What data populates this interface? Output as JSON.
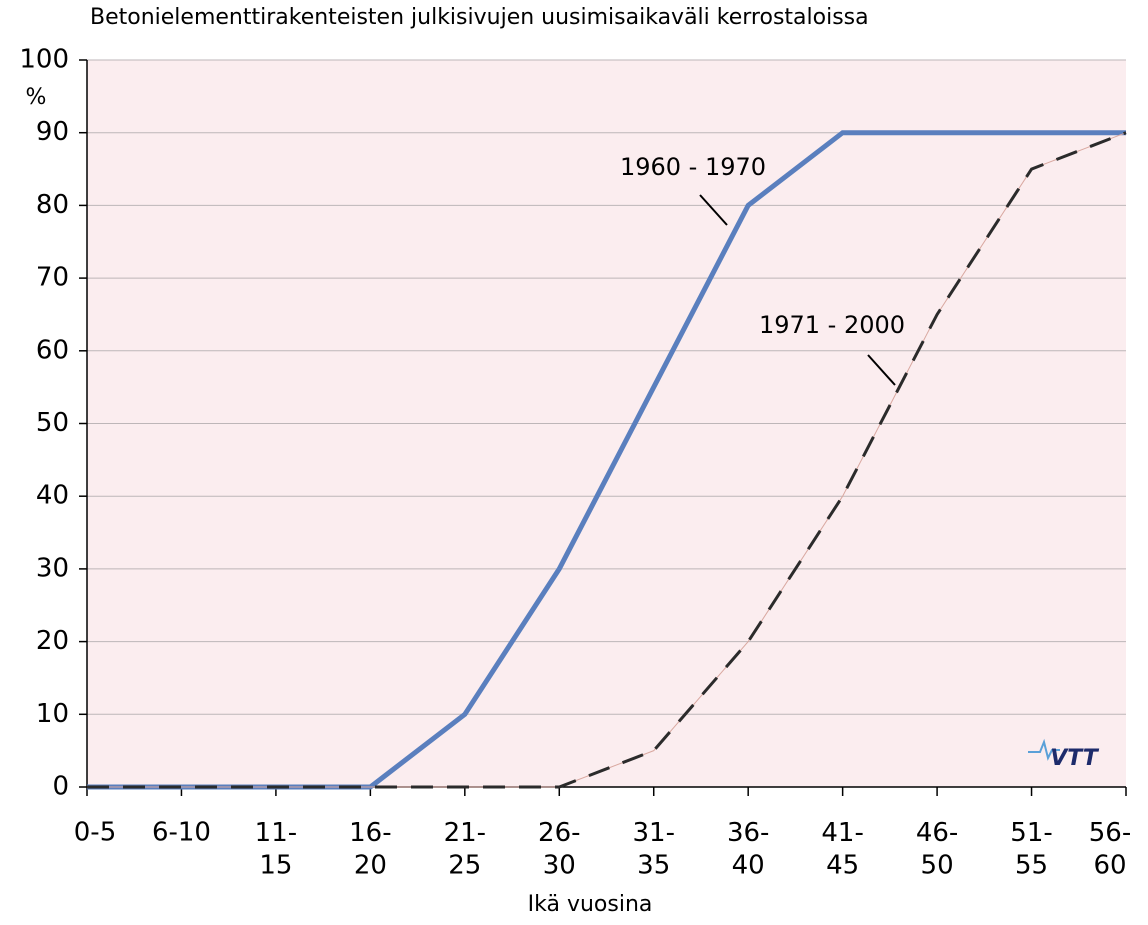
{
  "chart_data": {
    "type": "line",
    "title": "Betonielementtirakenteisten julkisivujen uusimisaikaväli kerrostaloissa",
    "y_unit": "%",
    "x_label": "Ikä vuosina",
    "logo": "VTT",
    "categories": [
      "0-5",
      "6-10",
      "11-\n15",
      "16-\n20",
      "21-\n25",
      "26-\n30",
      "31-\n35",
      "36-\n40",
      "41-\n45",
      "46-\n50",
      "51-\n55",
      "56-\n60"
    ],
    "series": [
      {
        "name": "1960 - 1970",
        "color": "#5a7fbe",
        "dash": false,
        "values": [
          0,
          0,
          0,
          0,
          10,
          30,
          55,
          80,
          90,
          90,
          90,
          90
        ]
      },
      {
        "name": "1971 - 2000",
        "color": "#2b2b2b",
        "dash": true,
        "values": [
          0,
          0,
          0,
          0,
          0,
          0,
          5,
          20,
          40,
          65,
          85,
          90
        ]
      }
    ],
    "ylim": [
      0,
      100
    ],
    "yticks": [
      0,
      10,
      20,
      30,
      40,
      50,
      60,
      70,
      80,
      90,
      100
    ],
    "grid": true,
    "background": "#fbedef"
  }
}
